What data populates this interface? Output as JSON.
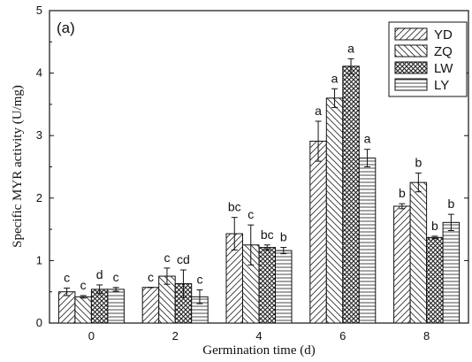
{
  "chart_data": {
    "type": "bar",
    "panel_label": "(a)",
    "xlabel": "Germination time (d)",
    "ylabel": "Specific MYR activity (U/mg)",
    "categories": [
      "0",
      "2",
      "4",
      "6",
      "8"
    ],
    "ylim": [
      0,
      5
    ],
    "yticks": [
      "0",
      "1",
      "2",
      "3",
      "4",
      "5"
    ],
    "legend_position": "top-right",
    "series": [
      {
        "name": "YD",
        "values": [
          0.5,
          0.57,
          1.43,
          2.91,
          1.87
        ],
        "errors": [
          0.06,
          0.0,
          0.26,
          0.32,
          0.04
        ],
        "letters": [
          "c",
          "c",
          "bc",
          "a",
          "b"
        ]
      },
      {
        "name": "ZQ",
        "values": [
          0.42,
          0.75,
          1.25,
          3.6,
          2.25
        ],
        "errors": [
          0.02,
          0.13,
          0.32,
          0.15,
          0.15
        ],
        "letters": [
          "c",
          "c",
          "c",
          "a",
          "b"
        ]
      },
      {
        "name": "LW",
        "values": [
          0.54,
          0.63,
          1.21,
          4.11,
          1.37
        ],
        "errors": [
          0.07,
          0.22,
          0.04,
          0.12,
          0.02
        ],
        "letters": [
          "d",
          "cd",
          "bc",
          "a",
          "b"
        ]
      },
      {
        "name": "LY",
        "values": [
          0.54,
          0.42,
          1.16,
          2.64,
          1.61
        ],
        "errors": [
          0.03,
          0.11,
          0.05,
          0.14,
          0.13
        ],
        "letters": [
          "c",
          "c",
          "b",
          "a",
          "b"
        ]
      }
    ]
  }
}
